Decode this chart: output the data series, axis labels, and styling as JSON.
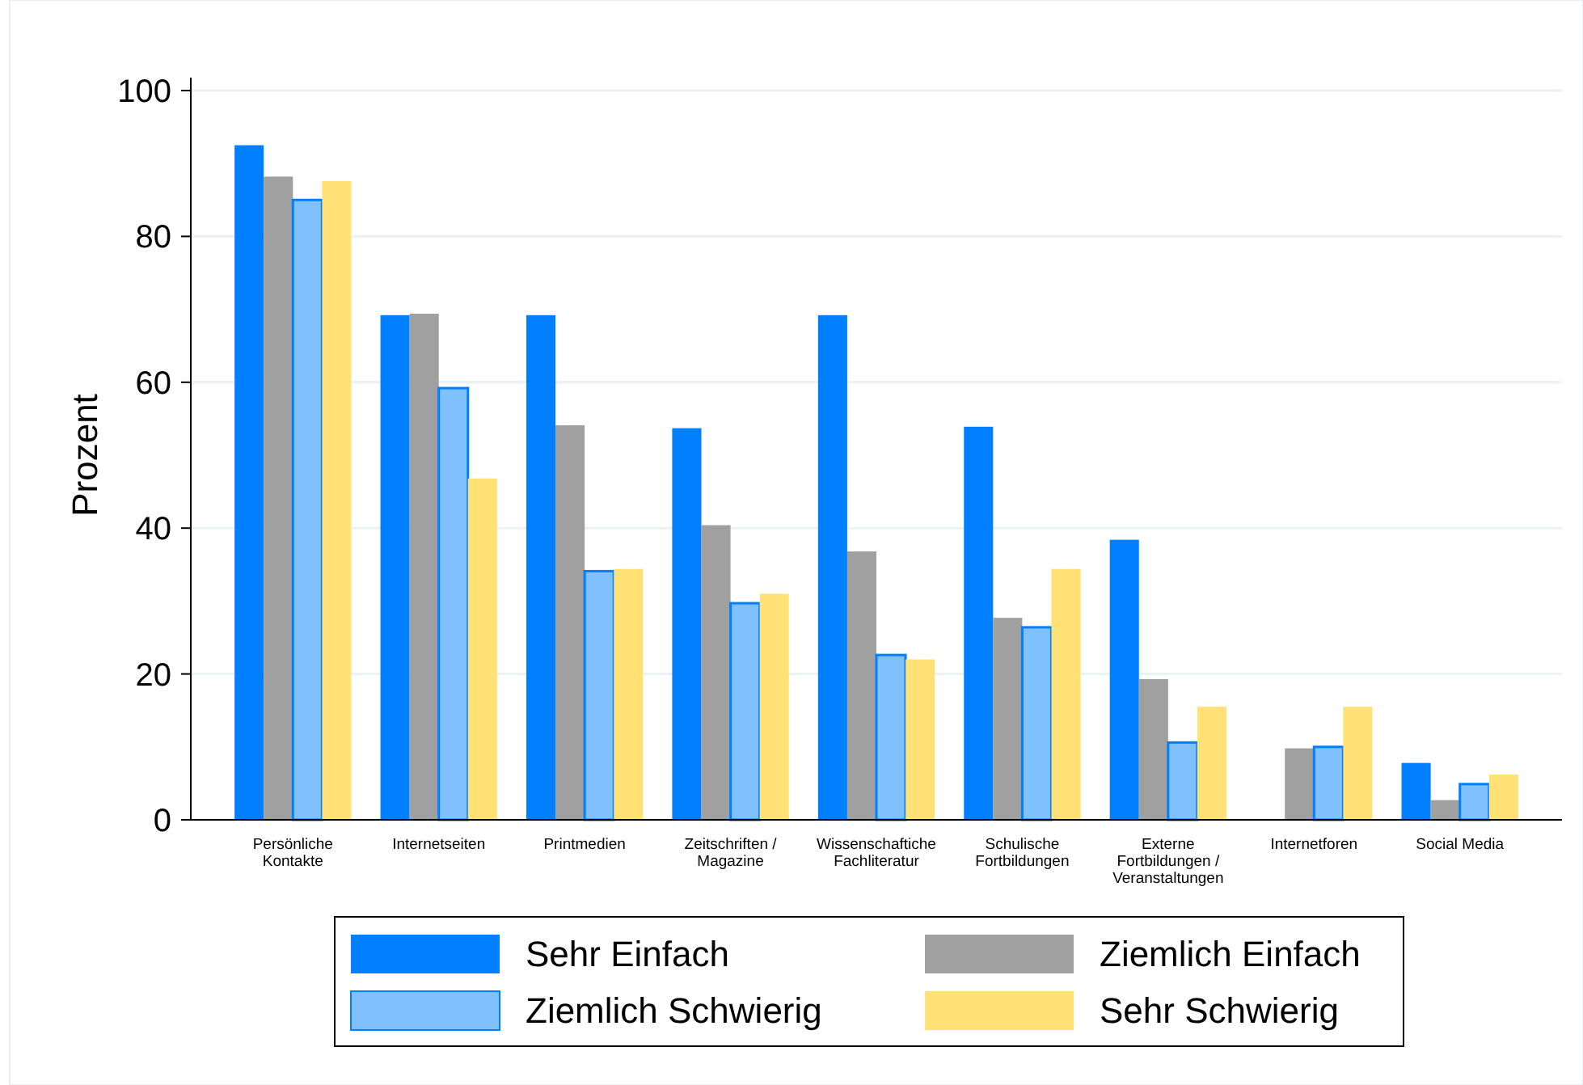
{
  "chart_data": {
    "type": "bar",
    "ylabel": "Prozent",
    "categories": [
      "Persönliche\nKontakte",
      "Internetseiten",
      "Printmedien",
      "Zeitschriften /\nMagazine",
      "Wissenschaftiche\nFachliteratur",
      "Schulische\nFortbildungen",
      "Externe\nFortbildungen /\nVeranstaltungen",
      "Internetforen",
      "Social Media"
    ],
    "series": [
      {
        "name": "Sehr Einfach",
        "color": "#0080ff",
        "values": [
          92.5,
          69.2,
          69.2,
          53.7,
          69.2,
          53.9,
          38.4,
          0,
          7.8
        ]
      },
      {
        "name": "Ziemlich Einfach",
        "color": "#a0a0a0",
        "values": [
          88.2,
          69.4,
          54.1,
          40.4,
          36.8,
          27.7,
          19.3,
          9.8,
          2.7
        ]
      },
      {
        "name": "Ziemlich Schwierig",
        "color": "#80c0ff",
        "values": [
          85,
          59.2,
          34.1,
          29.7,
          22.6,
          26.4,
          10.6,
          10,
          4.9
        ]
      },
      {
        "name": "Sehr Schwierig",
        "color": "#ffe176",
        "values": [
          87.6,
          46.8,
          34.4,
          31,
          22,
          34.4,
          15.5,
          15.5,
          6.2
        ]
      }
    ],
    "ylim": [
      0,
      100
    ],
    "yticks": [
      0,
      20,
      40,
      60,
      80,
      100
    ],
    "grid": "y",
    "legend": "bottom"
  }
}
